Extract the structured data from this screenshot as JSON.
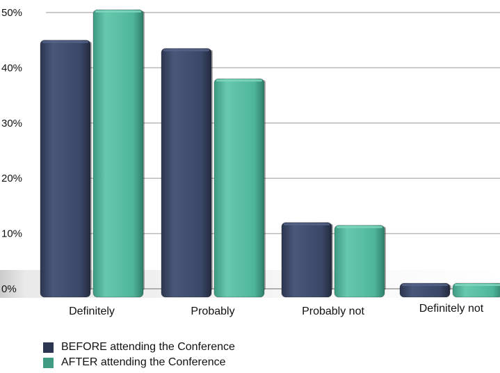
{
  "chart_data": {
    "type": "bar",
    "categories": [
      "Definitely",
      "Probably",
      "Probably not",
      "Definitely not"
    ],
    "series": [
      {
        "name": "BEFORE attending the Conference",
        "values": [
          45,
          43.5,
          12,
          1
        ],
        "color": "#3d4a6b"
      },
      {
        "name": "AFTER attending the Conference",
        "values": [
          50.5,
          38,
          11.5,
          1
        ],
        "color": "#4fb59a"
      }
    ],
    "yticks": [
      "0%",
      "10%",
      "20%",
      "30%",
      "40%",
      "50%"
    ],
    "ylim": [
      0,
      50
    ],
    "grid": true,
    "legend_position": "bottom-left"
  }
}
